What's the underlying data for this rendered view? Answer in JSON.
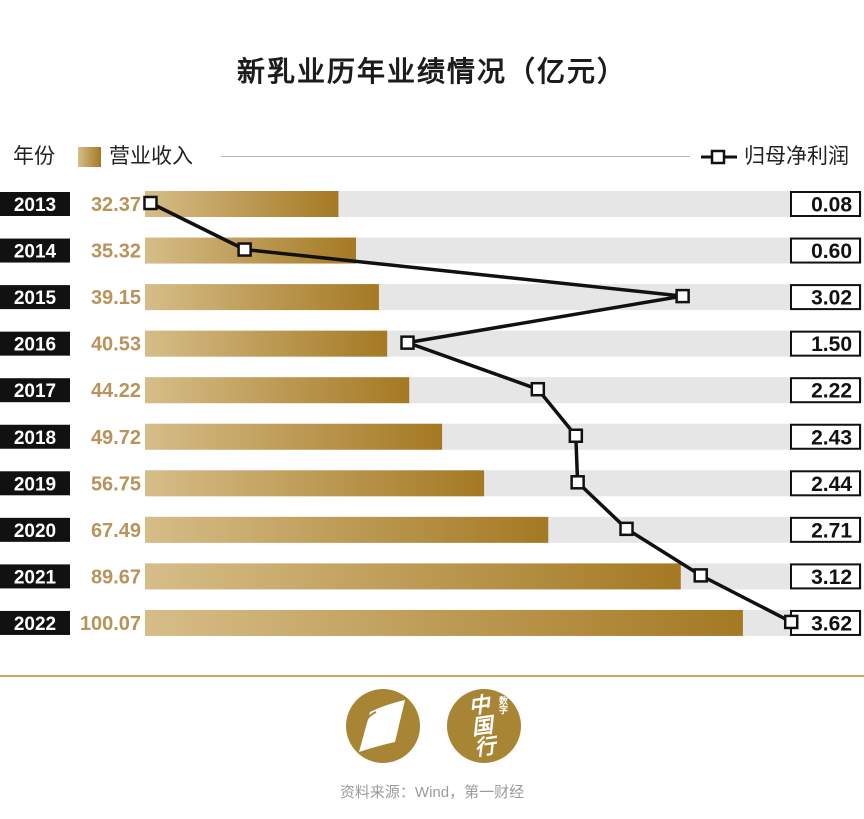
{
  "colors": {
    "bar_light": "#d6bd88",
    "bar_dark": "#a47923",
    "value_text": "#b8935a",
    "band": "#e6e6e6",
    "divider": "#c9aa6e",
    "logo": "#a88534",
    "line": "#111111"
  },
  "icons": {
    "profit_legend": "line-with-square-marker",
    "logo_left": "emblem",
    "logo_right": "calligraphy-seal"
  },
  "chart_data": {
    "type": "bar",
    "orientation": "horizontal",
    "title": "新乳业历年业绩情况（亿元）",
    "ylabel": "年份",
    "grid": false,
    "legend_position": "top",
    "categories": [
      "2013",
      "2014",
      "2015",
      "2016",
      "2017",
      "2018",
      "2019",
      "2020",
      "2021",
      "2022"
    ],
    "series": [
      {
        "name": "营业收入",
        "type": "bar",
        "values": [
          32.37,
          35.32,
          39.15,
          40.53,
          44.22,
          49.72,
          56.75,
          67.49,
          89.67,
          100.07
        ],
        "labels": [
          "32.37",
          "35.32",
          "39.15",
          "40.53",
          "44.22",
          "49.72",
          "56.75",
          "67.49",
          "89.67",
          "100.07"
        ],
        "xlim": [
          0,
          120
        ]
      },
      {
        "name": "归母净利润",
        "type": "line",
        "values": [
          0.08,
          0.6,
          3.02,
          1.5,
          2.22,
          2.43,
          2.44,
          2.71,
          3.12,
          3.62
        ],
        "labels": [
          "0.08",
          "0.60",
          "3.02",
          "1.50",
          "2.22",
          "2.43",
          "2.44",
          "2.71",
          "3.12",
          "3.62"
        ],
        "xlim": [
          0,
          4
        ]
      }
    ]
  },
  "logos": {
    "right": {
      "small": "数字",
      "main": "中国行"
    }
  },
  "footer": {
    "source": "资料来源：Wind，第一财经"
  }
}
